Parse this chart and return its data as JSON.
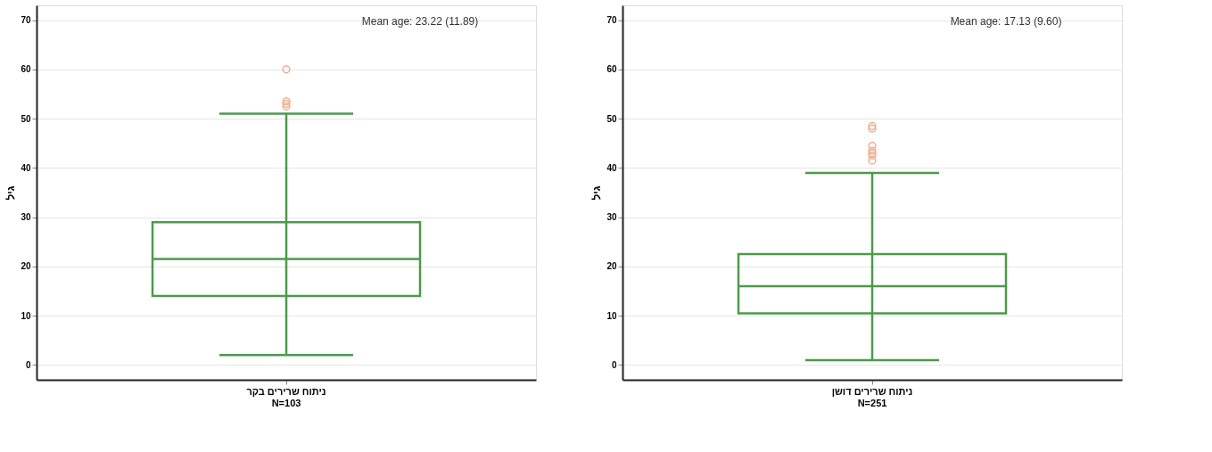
{
  "chart_data": [
    {
      "type": "box",
      "ylabel": "גיל",
      "categories": [
        "ניתוח שרירים בקר\nN=103"
      ],
      "boxes": [
        {
          "low": 2,
          "q1": 14,
          "median": 21.5,
          "q3": 29,
          "high": 51
        }
      ],
      "color": "#4c9a4c",
      "ylim": [
        -3,
        73
      ],
      "yticks": [
        0,
        10,
        20,
        30,
        40,
        50,
        60,
        70
      ],
      "grid": "y",
      "annotations": [
        "Mean age: 23.22 (11.89)"
      ],
      "series": [
        {
          "type": "scatter",
          "x": [
            "ניתוח שרירים בקר\nN=103",
            "ניתוח שרירים בקר\nN=103",
            "ניתוח שרירים בקר\nN=103",
            "ניתוח שרירים בקר\nN=103"
          ],
          "values": [
            52.5,
            53,
            53.5,
            60
          ],
          "color": "#f0b08c",
          "marker": "circle"
        }
      ]
    },
    {
      "type": "box",
      "ylabel": "גיל",
      "categories": [
        "ניתוח שרירים דושן\nN=251"
      ],
      "boxes": [
        {
          "low": 1,
          "q1": 10.5,
          "median": 16,
          "q3": 22.5,
          "high": 39
        }
      ],
      "color": "#4c9a4c",
      "ylim": [
        -3,
        73
      ],
      "yticks": [
        0,
        10,
        20,
        30,
        40,
        50,
        60,
        70
      ],
      "grid": "y",
      "annotations": [
        "Mean age: 17.13 (9.60)"
      ],
      "series": [
        {
          "type": "scatter",
          "x": [
            "ניתוח שרירים דושן\nN=251",
            "ניתוח שרירים דושן\nN=251",
            "ניתוח שרירים דושן\nN=251",
            "ניתוח שרירים דושן\nN=251",
            "ניתוח שרירים דושן\nN=251",
            "ניתוח שרירים דושן\nN=251",
            "ניתוח שרירים דושן\nN=251"
          ],
          "values": [
            41.5,
            42.5,
            43,
            43.5,
            44.5,
            48,
            48.5
          ],
          "color": "#f0b08c",
          "marker": "circle"
        }
      ]
    }
  ]
}
